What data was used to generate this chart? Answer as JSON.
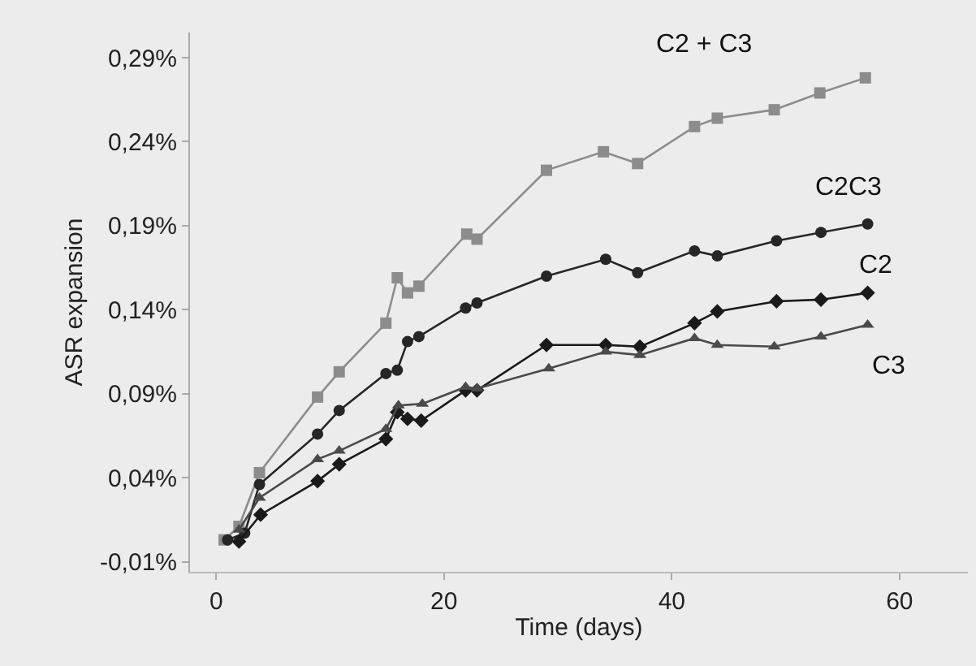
{
  "chart_data": {
    "type": "line",
    "xlabel": "Time (days)",
    "ylabel": "ASR expansion",
    "xlim": [
      -2.3,
      66
    ],
    "xticks": [
      0,
      20,
      40,
      60
    ],
    "ylim": [
      -0.016,
      0.305
    ],
    "yticks": [
      {
        "value": -0.01,
        "label": "-0,01%"
      },
      {
        "value": 0.04,
        "label": "0,04%"
      },
      {
        "value": 0.09,
        "label": "0,09%"
      },
      {
        "value": 0.14,
        "label": "0,14%"
      },
      {
        "value": 0.19,
        "label": "0,19%"
      },
      {
        "value": 0.24,
        "label": "0,24%"
      },
      {
        "value": 0.29,
        "label": "0,29%"
      }
    ],
    "grid": false,
    "legend": false,
    "line_style": "solid",
    "series": [
      {
        "name": "C2 + C3",
        "color": "#8c8c8c",
        "marker": "square",
        "x": [
          0.7,
          2,
          3.8,
          8.9,
          10.8,
          14.9,
          15.9,
          16.8,
          17.8,
          22,
          22.9,
          29,
          34,
          37,
          42,
          44,
          49,
          53,
          57
        ],
        "values": [
          0.003,
          0.011,
          0.043,
          0.088,
          0.103,
          0.132,
          0.159,
          0.15,
          0.154,
          0.185,
          0.182,
          0.223,
          0.234,
          0.227,
          0.249,
          0.254,
          0.259,
          0.269,
          0.278
        ]
      },
      {
        "name": "C2C3",
        "color": "#262626",
        "marker": "circle",
        "x": [
          1,
          2.5,
          3.8,
          8.9,
          10.8,
          14.9,
          15.9,
          16.8,
          17.8,
          21.9,
          22.9,
          29,
          34.2,
          37,
          42,
          44,
          49.2,
          53.1,
          57.2
        ],
        "values": [
          0.003,
          0.007,
          0.036,
          0.066,
          0.08,
          0.102,
          0.104,
          0.121,
          0.124,
          0.141,
          0.144,
          0.16,
          0.17,
          0.162,
          0.175,
          0.172,
          0.181,
          0.186,
          0.191
        ]
      },
      {
        "name": "C2",
        "color": "#1a1a1a",
        "marker": "diamond",
        "x": [
          2,
          3.9,
          8.9,
          10.8,
          14.9,
          15.9,
          16.8,
          18,
          21.9,
          22.9,
          29,
          34.2,
          37.2,
          42,
          44,
          49.2,
          53.1,
          57.2
        ],
        "values": [
          0.002,
          0.018,
          0.038,
          0.048,
          0.063,
          0.079,
          0.075,
          0.074,
          0.092,
          0.092,
          0.119,
          0.119,
          0.118,
          0.132,
          0.139,
          0.145,
          0.146,
          0.15
        ]
      },
      {
        "name": "C3",
        "color": "#4a4a4a",
        "marker": "triangle",
        "x": [
          2,
          3.8,
          8.9,
          10.8,
          14.9,
          16,
          18.1,
          21.9,
          22.9,
          29.2,
          34.2,
          37.2,
          42,
          44,
          49,
          53.1,
          57.2
        ],
        "values": [
          0.009,
          0.028,
          0.051,
          0.056,
          0.069,
          0.083,
          0.084,
          0.094,
          0.093,
          0.105,
          0.115,
          0.113,
          0.123,
          0.119,
          0.118,
          0.124,
          0.131
        ]
      }
    ]
  }
}
